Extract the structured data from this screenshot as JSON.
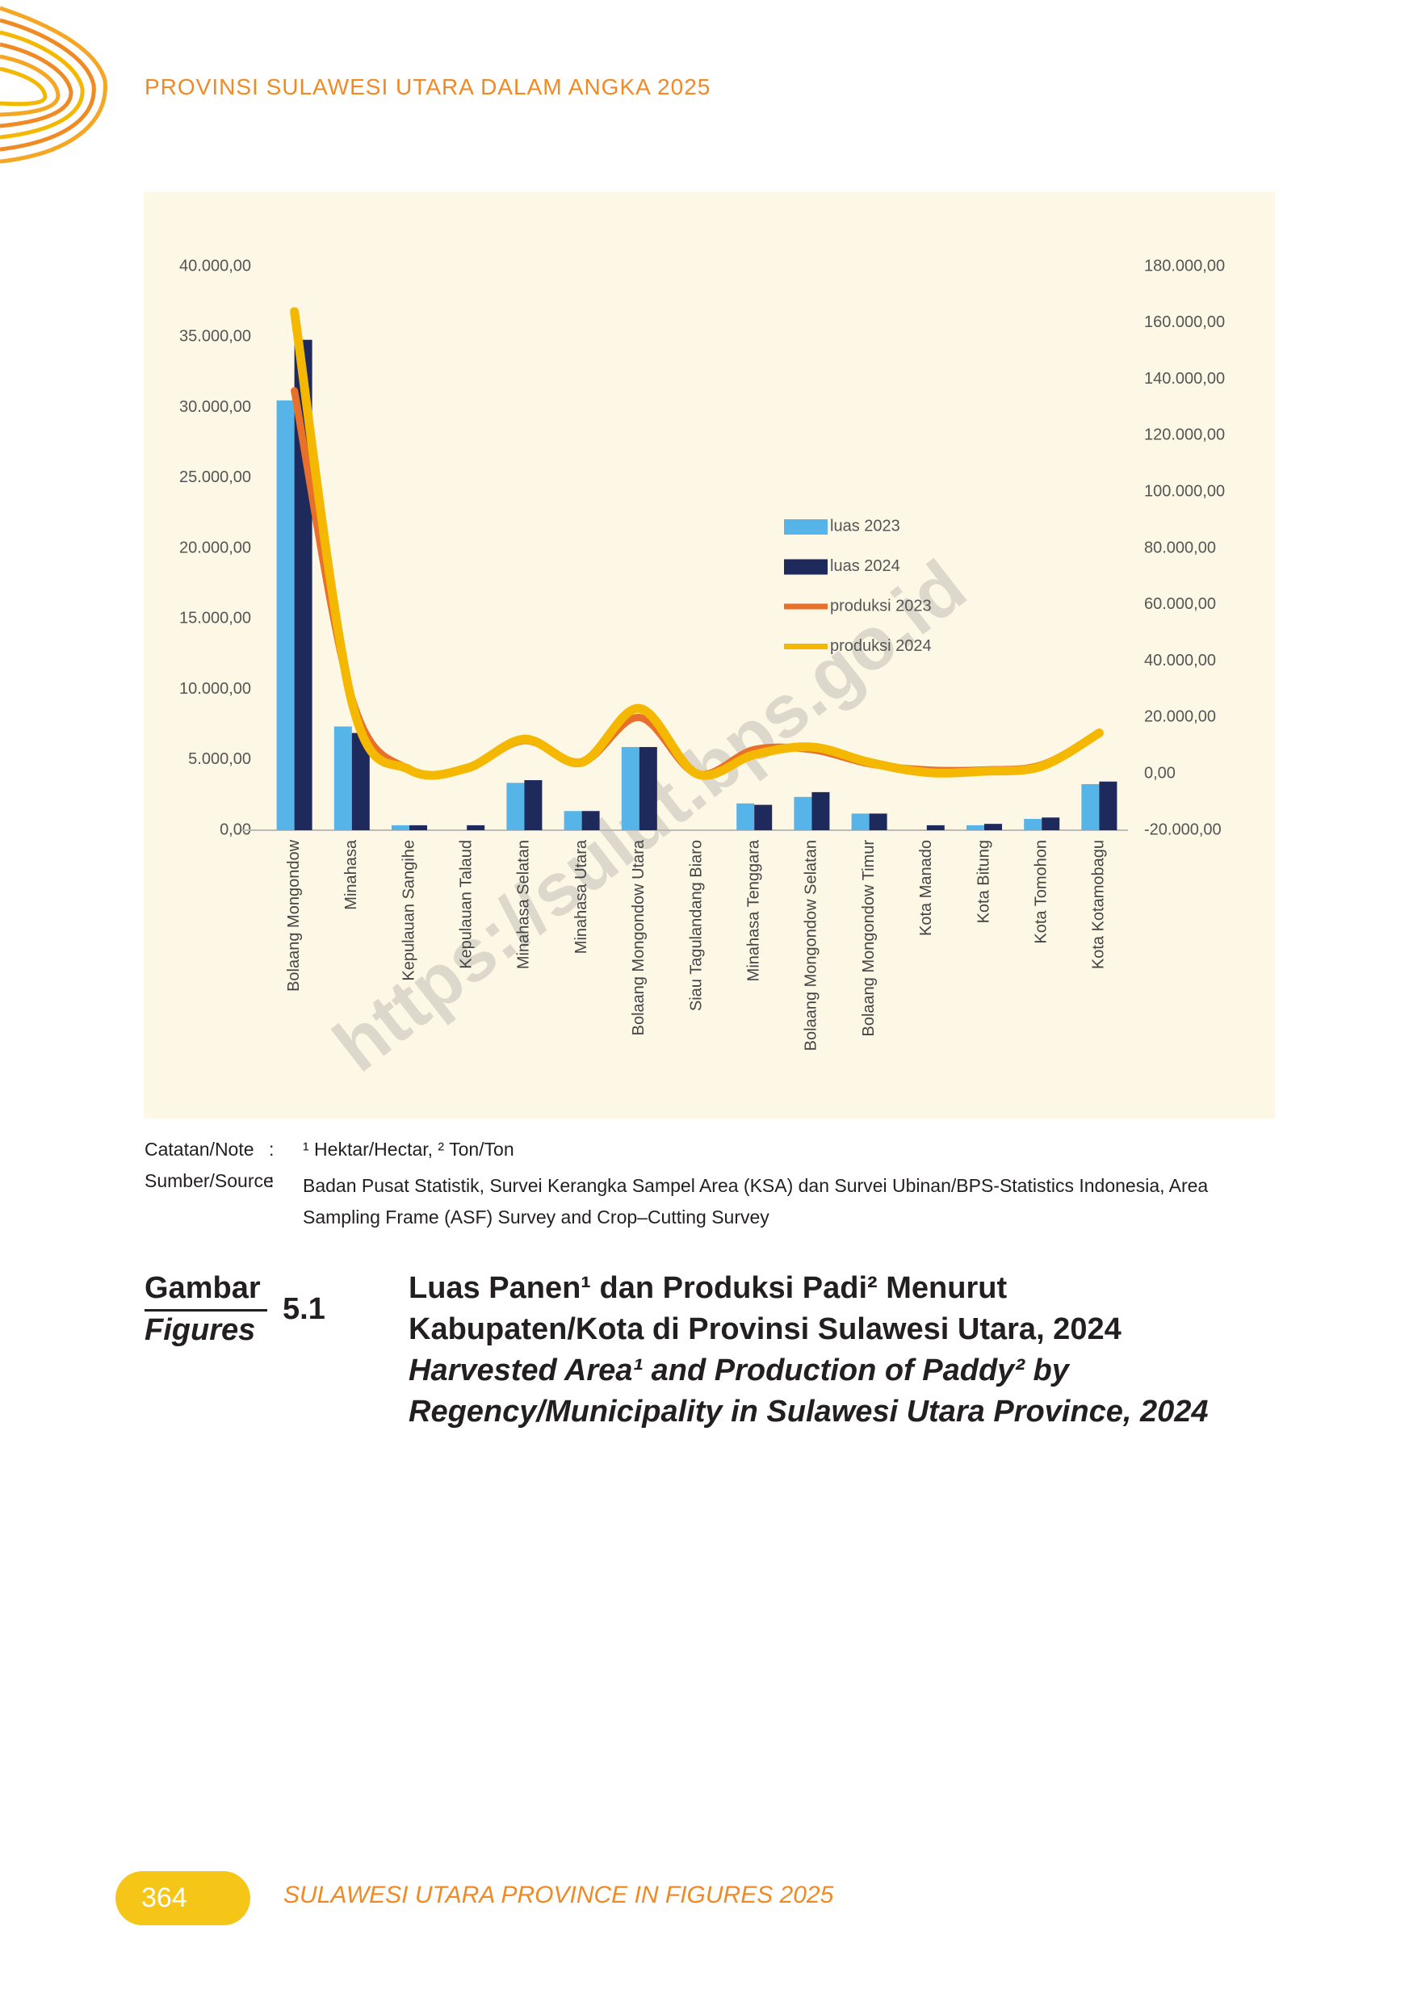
{
  "header": {
    "title": "PROVINSI SULAWESI UTARA DALAM ANGKA 2025"
  },
  "chart_data": {
    "type": "bar-line",
    "categories": [
      "Bolaang Mongondow",
      "Minahasa",
      "Kepulauan Sangihe",
      "Kepulauan Talaud",
      "Minahasa Selatan",
      "Minahasa Utara",
      "Bolaang Mongondow Utara",
      "Siau Tagulandang Biaro",
      "Minahasa Tenggara",
      "Bolaang Mongondow Selatan",
      "Bolaang Mongondow Timur",
      "Kota Manado",
      "Kota Bitung",
      "Kota Tomohon",
      "Kota Kotamobagu"
    ],
    "series": [
      {
        "name": "luas 2023",
        "color": "#56b4e9",
        "kind": "bar",
        "values": [
          30500,
          7360,
          350,
          0,
          3360,
          1360,
          5900,
          0,
          1900,
          2360,
          1180,
          0,
          350,
          800,
          3270
        ]
      },
      {
        "name": "luas 2024",
        "color": "#1f2a5c",
        "kind": "bar",
        "values": [
          34800,
          6900,
          350,
          350,
          3550,
          1360,
          5900,
          0,
          1800,
          2700,
          1180,
          350,
          450,
          900,
          3450
        ]
      },
      {
        "name": "produksi 2023",
        "color": "#e8702a",
        "kind": "line",
        "axis": "y2",
        "values": [
          135900,
          26800,
          1500,
          1800,
          11800,
          4100,
          20000,
          0,
          8600,
          8600,
          3600,
          1400,
          1400,
          3200,
          14500
        ]
      },
      {
        "name": "produksi 2024",
        "color": "#f5b800",
        "kind": "line",
        "axis": "y2",
        "values": [
          164000,
          25500,
          1500,
          2000,
          12300,
          4100,
          23200,
          0,
          6800,
          9500,
          4100,
          500,
          900,
          2700,
          14500
        ]
      }
    ],
    "ylim": [
      0,
      40000
    ],
    "yticks": [
      {
        "value": 0,
        "label": "0,00"
      },
      {
        "value": 5000,
        "label": "5.000,00"
      },
      {
        "value": 10000,
        "label": "10.000,00"
      },
      {
        "value": 15000,
        "label": "15.000,00"
      },
      {
        "value": 20000,
        "label": "20.000,00"
      },
      {
        "value": 25000,
        "label": "25.000,00"
      },
      {
        "value": 30000,
        "label": "30.000,00"
      },
      {
        "value": 35000,
        "label": "35.000,00"
      },
      {
        "value": 40000,
        "label": "40.000,00"
      }
    ],
    "y2lim": [
      -20000,
      180000
    ],
    "y2ticks": [
      {
        "value": -20000,
        "label": "-20.000,00"
      },
      {
        "value": 0,
        "label": "0,00"
      },
      {
        "value": 20000,
        "label": "20.000,00"
      },
      {
        "value": 40000,
        "label": "40.000,00"
      },
      {
        "value": 60000,
        "label": "60.000,00"
      },
      {
        "value": 80000,
        "label": "80.000,00"
      },
      {
        "value": 100000,
        "label": "100.000,00"
      },
      {
        "value": 120000,
        "label": "120.000,00"
      },
      {
        "value": 140000,
        "label": "140.000,00"
      },
      {
        "value": 160000,
        "label": "160.000,00"
      },
      {
        "value": 180000,
        "label": "180.000,00"
      }
    ]
  },
  "watermark": "https://sulut.bps.go.id",
  "notes": {
    "note_label": "Catatan/Note",
    "separator": ":",
    "note_text": "¹ Hektar/Hectar, ² Ton/Ton",
    "source_label": "Sumber/Source",
    "source_text": "Badan Pusat Statistik, Survei Kerangka Sampel Area (KSA) dan Survei Ubinan/BPS-Statistics Indonesia, Area Sampling Frame (ASF) Survey and Crop–Cutting Survey"
  },
  "caption": {
    "label_id": "Gambar",
    "label_en": "Figures",
    "number": "5.1",
    "title_id": [
      "Luas Panen¹ dan Produksi Padi² Menurut",
      "Kabupaten/Kota di Provinsi Sulawesi Utara, 2024"
    ],
    "title_en": [
      "Harvested Area¹ and Production of Paddy² by",
      "Regency/Municipality in Sulawesi Utara Province, 2024"
    ]
  },
  "footer": {
    "page": "364",
    "text": "SULAWESI UTARA PROVINCE IN FIGURES 2025"
  }
}
